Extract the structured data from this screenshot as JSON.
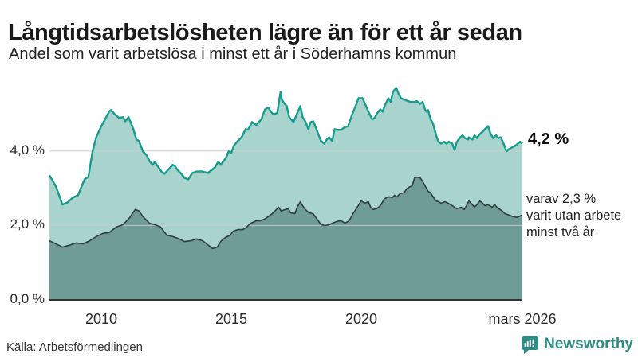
{
  "header": {
    "title": "Långtidsarbetslösheten lägre än för ett år sedan",
    "subtitle": "Andel som varit arbetslösa i minst ett år i Söderhamns kommun"
  },
  "axis": {
    "y_ticks": [
      "4,0 %",
      "2,0 %",
      "0,0 %"
    ],
    "x_ticks": [
      "2010",
      "2015",
      "2020",
      "mars 2026"
    ]
  },
  "annotations": {
    "latest_total": "4,2 %",
    "secondary_lines": [
      "varav 2,3 %",
      "varit utan arbete",
      "minst två år"
    ]
  },
  "footer": {
    "source": "Källa: Arbetsförmedlingen",
    "brand": "Newsworthy"
  },
  "colors": {
    "accent_line": "#169b8d",
    "accent_fill": "#a9d4cd",
    "dark_line": "#2f3c3a",
    "dark_fill": "#6f9c94",
    "grid": "#c9cecd",
    "axis_line": "#333333",
    "brand_teal": "#2e8c82"
  },
  "chart_data": {
    "type": "area",
    "title": "Långtidsarbetslösheten lägre än för ett år sedan",
    "subtitle": "Andel som varit arbetslösa i minst ett år i Söderhamns kommun",
    "unit": "%",
    "xlim": [
      2008.0,
      2026.21
    ],
    "ylim": [
      0,
      5.9
    ],
    "y_gridlines": [
      2.0,
      4.0
    ],
    "x_tick_years": [
      2010,
      2015,
      2020,
      2026.21
    ],
    "latest": {
      "total_pct": 4.2,
      "two_years_pct": 2.3,
      "latest_label": "mars 2026"
    },
    "series": [
      {
        "name": "Arbetslösa minst ett år",
        "color": "#169b8d",
        "fill": "#a9d4cd",
        "points": [
          [
            2008.0,
            3.35
          ],
          [
            2008.25,
            3.05
          ],
          [
            2008.5,
            2.56
          ],
          [
            2008.7,
            2.62
          ],
          [
            2008.9,
            2.75
          ],
          [
            2009.1,
            2.81
          ],
          [
            2009.35,
            3.24
          ],
          [
            2009.5,
            3.31
          ],
          [
            2009.66,
            3.99
          ],
          [
            2009.8,
            4.37
          ],
          [
            2010.0,
            4.67
          ],
          [
            2010.3,
            5.06
          ],
          [
            2010.37,
            5.1
          ],
          [
            2010.5,
            5.0
          ],
          [
            2010.68,
            4.89
          ],
          [
            2010.83,
            4.91
          ],
          [
            2010.92,
            4.8
          ],
          [
            2011.05,
            4.91
          ],
          [
            2011.23,
            4.59
          ],
          [
            2011.35,
            4.31
          ],
          [
            2011.45,
            4.27
          ],
          [
            2011.6,
            3.99
          ],
          [
            2011.75,
            3.88
          ],
          [
            2011.85,
            3.73
          ],
          [
            2011.97,
            3.63
          ],
          [
            2012.06,
            3.71
          ],
          [
            2012.16,
            3.6
          ],
          [
            2012.31,
            3.45
          ],
          [
            2012.43,
            3.39
          ],
          [
            2012.58,
            3.5
          ],
          [
            2012.74,
            3.63
          ],
          [
            2012.83,
            3.6
          ],
          [
            2012.92,
            3.5
          ],
          [
            2013.08,
            3.39
          ],
          [
            2013.2,
            3.28
          ],
          [
            2013.35,
            3.24
          ],
          [
            2013.5,
            3.41
          ],
          [
            2013.66,
            3.45
          ],
          [
            2013.9,
            3.45
          ],
          [
            2014.1,
            3.41
          ],
          [
            2014.37,
            3.56
          ],
          [
            2014.5,
            3.71
          ],
          [
            2014.6,
            3.63
          ],
          [
            2014.8,
            3.82
          ],
          [
            2014.9,
            3.99
          ],
          [
            2015.0,
            3.95
          ],
          [
            2015.1,
            4.14
          ],
          [
            2015.25,
            4.27
          ],
          [
            2015.4,
            4.37
          ],
          [
            2015.55,
            4.59
          ],
          [
            2015.65,
            4.57
          ],
          [
            2015.8,
            4.78
          ],
          [
            2015.97,
            4.7
          ],
          [
            2016.06,
            4.78
          ],
          [
            2016.16,
            4.85
          ],
          [
            2016.3,
            5.12
          ],
          [
            2016.43,
            5.17
          ],
          [
            2016.52,
            5.06
          ],
          [
            2016.62,
            4.99
          ],
          [
            2016.77,
            5.02
          ],
          [
            2016.9,
            5.59
          ],
          [
            2016.95,
            5.38
          ],
          [
            2017.05,
            5.27
          ],
          [
            2017.14,
            5.21
          ],
          [
            2017.23,
            4.91
          ],
          [
            2017.4,
            4.78
          ],
          [
            2017.5,
            4.95
          ],
          [
            2017.66,
            5.21
          ],
          [
            2017.75,
            4.91
          ],
          [
            2017.85,
            4.8
          ],
          [
            2017.97,
            4.59
          ],
          [
            2018.06,
            4.78
          ],
          [
            2018.16,
            4.8
          ],
          [
            2018.28,
            4.59
          ],
          [
            2018.37,
            4.42
          ],
          [
            2018.46,
            4.27
          ],
          [
            2018.58,
            4.2
          ],
          [
            2018.68,
            4.31
          ],
          [
            2018.77,
            4.37
          ],
          [
            2018.89,
            4.27
          ],
          [
            2018.98,
            4.59
          ],
          [
            2019.08,
            4.57
          ],
          [
            2019.23,
            4.57
          ],
          [
            2019.35,
            4.63
          ],
          [
            2019.5,
            4.67
          ],
          [
            2019.66,
            4.99
          ],
          [
            2019.8,
            5.23
          ],
          [
            2019.9,
            5.42
          ],
          [
            2020.06,
            5.42
          ],
          [
            2020.15,
            5.27
          ],
          [
            2020.28,
            5.06
          ],
          [
            2020.43,
            4.85
          ],
          [
            2020.52,
            4.89
          ],
          [
            2020.62,
            5.02
          ],
          [
            2020.74,
            5.12
          ],
          [
            2020.83,
            5.06
          ],
          [
            2020.92,
            5.23
          ],
          [
            2021.05,
            5.42
          ],
          [
            2021.14,
            5.32
          ],
          [
            2021.23,
            5.59
          ],
          [
            2021.35,
            5.7
          ],
          [
            2021.45,
            5.53
          ],
          [
            2021.54,
            5.42
          ],
          [
            2021.66,
            5.38
          ],
          [
            2021.82,
            5.34
          ],
          [
            2021.9,
            5.32
          ],
          [
            2022.06,
            5.32
          ],
          [
            2022.15,
            5.34
          ],
          [
            2022.28,
            5.27
          ],
          [
            2022.37,
            5.32
          ],
          [
            2022.46,
            5.12
          ],
          [
            2022.52,
            5.06
          ],
          [
            2022.58,
            5.1
          ],
          [
            2022.68,
            4.85
          ],
          [
            2022.77,
            4.74
          ],
          [
            2022.89,
            4.42
          ],
          [
            2022.98,
            4.25
          ],
          [
            2023.08,
            4.2
          ],
          [
            2023.2,
            4.25
          ],
          [
            2023.29,
            4.2
          ],
          [
            2023.38,
            4.25
          ],
          [
            2023.51,
            4.2
          ],
          [
            2023.6,
            4.03
          ],
          [
            2023.69,
            4.25
          ],
          [
            2023.82,
            4.37
          ],
          [
            2023.91,
            4.42
          ],
          [
            2024.0,
            4.35
          ],
          [
            2024.12,
            4.31
          ],
          [
            2024.15,
            4.37
          ],
          [
            2024.28,
            4.31
          ],
          [
            2024.37,
            4.42
          ],
          [
            2024.46,
            4.35
          ],
          [
            2024.58,
            4.46
          ],
          [
            2024.68,
            4.52
          ],
          [
            2024.77,
            4.59
          ],
          [
            2024.89,
            4.67
          ],
          [
            2024.98,
            4.48
          ],
          [
            2025.08,
            4.35
          ],
          [
            2025.2,
            4.42
          ],
          [
            2025.29,
            4.35
          ],
          [
            2025.38,
            4.37
          ],
          [
            2025.51,
            4.16
          ],
          [
            2025.6,
            3.99
          ],
          [
            2025.69,
            4.05
          ],
          [
            2025.82,
            4.1
          ],
          [
            2025.97,
            4.16
          ],
          [
            2026.12,
            4.25
          ],
          [
            2026.21,
            4.2
          ]
        ]
      },
      {
        "name": "Arbetslösa minst två år",
        "color": "#2f3c3a",
        "fill": "#6f9c94",
        "points": [
          [
            2008.0,
            1.59
          ],
          [
            2008.3,
            1.49
          ],
          [
            2008.5,
            1.42
          ],
          [
            2008.77,
            1.47
          ],
          [
            2009.03,
            1.53
          ],
          [
            2009.3,
            1.51
          ],
          [
            2009.55,
            1.59
          ],
          [
            2009.8,
            1.7
          ],
          [
            2010.06,
            1.79
          ],
          [
            2010.3,
            1.81
          ],
          [
            2010.58,
            1.96
          ],
          [
            2010.83,
            2.02
          ],
          [
            2011.09,
            2.21
          ],
          [
            2011.3,
            2.43
          ],
          [
            2011.45,
            2.39
          ],
          [
            2011.6,
            2.24
          ],
          [
            2011.85,
            2.06
          ],
          [
            2012.06,
            2.02
          ],
          [
            2012.28,
            1.96
          ],
          [
            2012.52,
            1.74
          ],
          [
            2012.77,
            1.7
          ],
          [
            2013.0,
            1.64
          ],
          [
            2013.2,
            1.57
          ],
          [
            2013.45,
            1.59
          ],
          [
            2013.66,
            1.64
          ],
          [
            2013.9,
            1.59
          ],
          [
            2014.12,
            1.47
          ],
          [
            2014.28,
            1.38
          ],
          [
            2014.46,
            1.42
          ],
          [
            2014.62,
            1.59
          ],
          [
            2014.78,
            1.68
          ],
          [
            2014.95,
            1.74
          ],
          [
            2015.08,
            1.85
          ],
          [
            2015.25,
            1.89
          ],
          [
            2015.45,
            1.89
          ],
          [
            2015.6,
            1.96
          ],
          [
            2015.75,
            2.06
          ],
          [
            2015.97,
            2.13
          ],
          [
            2016.12,
            2.13
          ],
          [
            2016.28,
            2.17
          ],
          [
            2016.43,
            2.24
          ],
          [
            2016.58,
            2.32
          ],
          [
            2016.74,
            2.43
          ],
          [
            2016.83,
            2.49
          ],
          [
            2016.92,
            2.39
          ],
          [
            2017.08,
            2.43
          ],
          [
            2017.2,
            2.45
          ],
          [
            2017.29,
            2.34
          ],
          [
            2017.45,
            2.32
          ],
          [
            2017.54,
            2.49
          ],
          [
            2017.66,
            2.64
          ],
          [
            2017.75,
            2.53
          ],
          [
            2017.85,
            2.43
          ],
          [
            2018.0,
            2.34
          ],
          [
            2018.15,
            2.32
          ],
          [
            2018.31,
            2.17
          ],
          [
            2018.46,
            2.02
          ],
          [
            2018.62,
            2.0
          ],
          [
            2018.77,
            2.02
          ],
          [
            2018.89,
            2.06
          ],
          [
            2019.08,
            2.11
          ],
          [
            2019.23,
            2.13
          ],
          [
            2019.38,
            2.06
          ],
          [
            2019.54,
            2.13
          ],
          [
            2019.69,
            2.32
          ],
          [
            2019.85,
            2.49
          ],
          [
            2020.0,
            2.66
          ],
          [
            2020.15,
            2.6
          ],
          [
            2020.28,
            2.64
          ],
          [
            2020.37,
            2.49
          ],
          [
            2020.46,
            2.43
          ],
          [
            2020.58,
            2.45
          ],
          [
            2020.68,
            2.49
          ],
          [
            2020.77,
            2.56
          ],
          [
            2020.89,
            2.71
          ],
          [
            2020.98,
            2.75
          ],
          [
            2021.08,
            2.77
          ],
          [
            2021.2,
            2.75
          ],
          [
            2021.29,
            2.81
          ],
          [
            2021.38,
            2.77
          ],
          [
            2021.51,
            2.86
          ],
          [
            2021.66,
            2.88
          ],
          [
            2021.75,
            2.98
          ],
          [
            2021.85,
            3.03
          ],
          [
            2021.97,
            3.07
          ],
          [
            2022.06,
            3.28
          ],
          [
            2022.15,
            3.3
          ],
          [
            2022.28,
            3.28
          ],
          [
            2022.37,
            3.18
          ],
          [
            2022.46,
            3.07
          ],
          [
            2022.58,
            2.92
          ],
          [
            2022.68,
            2.88
          ],
          [
            2022.77,
            2.77
          ],
          [
            2022.89,
            2.66
          ],
          [
            2022.98,
            2.64
          ],
          [
            2023.08,
            2.6
          ],
          [
            2023.23,
            2.64
          ],
          [
            2023.35,
            2.6
          ],
          [
            2023.45,
            2.56
          ],
          [
            2023.6,
            2.49
          ],
          [
            2023.69,
            2.45
          ],
          [
            2023.85,
            2.49
          ],
          [
            2023.97,
            2.43
          ],
          [
            2024.06,
            2.53
          ],
          [
            2024.15,
            2.66
          ],
          [
            2024.28,
            2.56
          ],
          [
            2024.37,
            2.49
          ],
          [
            2024.46,
            2.56
          ],
          [
            2024.58,
            2.66
          ],
          [
            2024.68,
            2.6
          ],
          [
            2024.77,
            2.53
          ],
          [
            2024.89,
            2.56
          ],
          [
            2025.05,
            2.49
          ],
          [
            2025.14,
            2.56
          ],
          [
            2025.23,
            2.49
          ],
          [
            2025.35,
            2.43
          ],
          [
            2025.45,
            2.38
          ],
          [
            2025.54,
            2.32
          ],
          [
            2025.69,
            2.28
          ],
          [
            2025.85,
            2.24
          ],
          [
            2026.0,
            2.22
          ],
          [
            2026.21,
            2.28
          ]
        ]
      }
    ]
  }
}
